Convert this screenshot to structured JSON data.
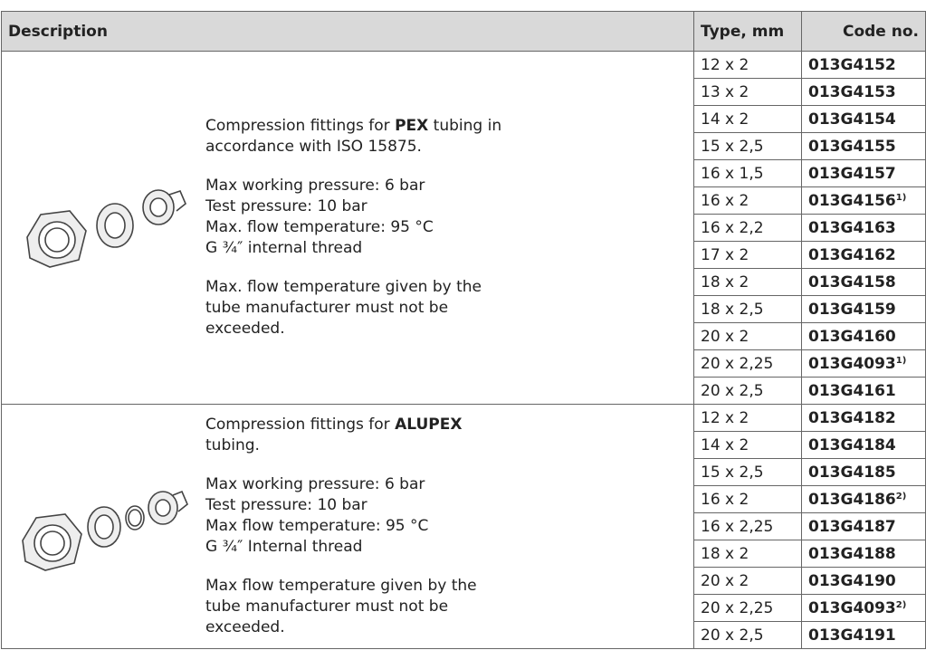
{
  "table": {
    "header": [
      "Description",
      "Type, mm",
      "Code no."
    ],
    "groups": [
      {
        "intro": {
          "before": "Compression fittings for ",
          "bold": "PEX",
          "after": " tubing in accordance with ISO 15875."
        },
        "specs": [
          "Max working pressure: 6 bar",
          "Test pressure: 10 bar",
          "Max. flow temperature: 95 °C",
          "G ¾″ internal thread"
        ],
        "note": "Max. flow temperature given by the tube manufacturer must not be exceeded.",
        "rows": [
          {
            "type": "12 x 2",
            "code": "013G4152"
          },
          {
            "type": "13 x 2",
            "code": "013G4153"
          },
          {
            "type": "14 x 2",
            "code": "013G4154"
          },
          {
            "type": "15 x 2,5",
            "code": "013G4155"
          },
          {
            "type": "16 x 1,5",
            "code": "013G4157"
          },
          {
            "type": "16 x 2",
            "code": "013G4156",
            "sup": "1)"
          },
          {
            "type": "16 x 2,2",
            "code": "013G4163"
          },
          {
            "type": "17 x 2",
            "code": "013G4162"
          },
          {
            "type": "18 x 2",
            "code": "013G4158"
          },
          {
            "type": "18 x 2,5",
            "code": "013G4159"
          },
          {
            "type": "20 x 2",
            "code": "013G4160"
          },
          {
            "type": "20 x 2,25",
            "code": "013G4093",
            "sup": "1)"
          },
          {
            "type": "20 x 2,5",
            "code": "013G4161"
          }
        ]
      },
      {
        "intro": {
          "before": "Compression fittings for ",
          "bold": "ALUPEX",
          "after": " tubing."
        },
        "specs": [
          "Max working pressure: 6 bar",
          "Test pressure: 10 bar",
          "Max flow temperature: 95 °C",
          "G ¾″ Internal thread"
        ],
        "note": "Max flow temperature given by the tube manufacturer must not be exceeded.",
        "rows": [
          {
            "type": "12 x 2",
            "code": "013G4182"
          },
          {
            "type": "14 x 2",
            "code": "013G4184"
          },
          {
            "type": "15 x 2,5",
            "code": "013G4185"
          },
          {
            "type": "16 x 2",
            "code": "013G4186",
            "sup": "2)"
          },
          {
            "type": "16 x 2,25",
            "code": "013G4187"
          },
          {
            "type": "18 x 2",
            "code": "013G4188"
          },
          {
            "type": "20 x 2",
            "code": "013G4190"
          },
          {
            "type": "20 x 2,25",
            "code": "013G4093",
            "sup": "2)"
          },
          {
            "type": "20 x 2,5",
            "code": "013G4191"
          }
        ]
      }
    ]
  }
}
